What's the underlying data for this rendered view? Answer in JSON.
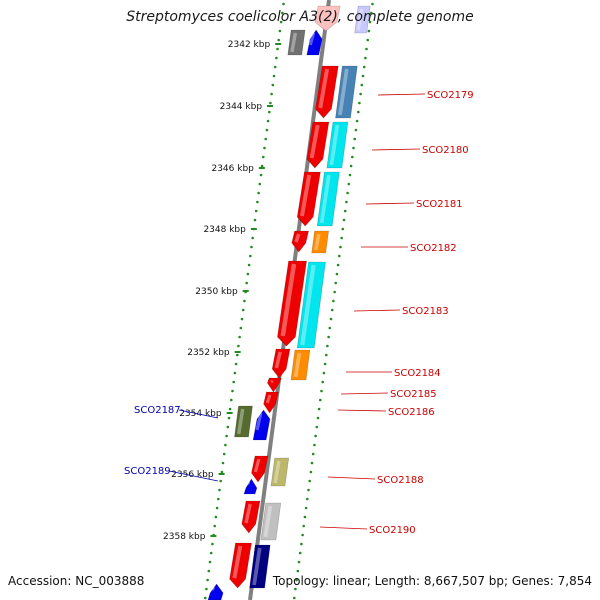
{
  "title": "Streptomyces coelicolor A3(2), complete genome",
  "footer": {
    "accession": "Accession: NC_003888",
    "stats": "Topology: linear; Length: 8,667,507 bp; Genes: 7,854"
  },
  "colors": {
    "backbone": "#888888",
    "guide_dots": "#228b22",
    "label_right": "#cc0000",
    "label_left": "#0000b0",
    "tick_text": "#111111"
  },
  "scale_ticks": [
    {
      "label": "2342 kbp",
      "kbp": 2342
    },
    {
      "label": "2344 kbp",
      "kbp": 2344
    },
    {
      "label": "2346 kbp",
      "kbp": 2346
    },
    {
      "label": "2348 kbp",
      "kbp": 2348
    },
    {
      "label": "2350 kbp",
      "kbp": 2350
    },
    {
      "label": "2352 kbp",
      "kbp": 2352
    },
    {
      "label": "2354 kbp",
      "kbp": 2354
    },
    {
      "label": "2356 kbp",
      "kbp": 2356
    },
    {
      "label": "2358 kbp",
      "kbp": 2358
    }
  ],
  "gene_labels_right": [
    {
      "name": "SCO2179",
      "color": "#cc0000"
    },
    {
      "name": "SCO2180",
      "color": "#cc0000"
    },
    {
      "name": "SCO2181",
      "color": "#cc0000"
    },
    {
      "name": "SCO2182",
      "color": "#cc0000"
    },
    {
      "name": "SCO2183",
      "color": "#cc0000"
    },
    {
      "name": "SCO2184",
      "color": "#cc0000"
    },
    {
      "name": "SCO2185",
      "color": "#cc0000"
    },
    {
      "name": "SCO2186",
      "color": "#cc0000"
    },
    {
      "name": "SCO2188",
      "color": "#cc0000"
    },
    {
      "name": "SCO2190",
      "color": "#cc0000"
    }
  ],
  "gene_labels_left": [
    {
      "name": "SCO2187",
      "color": "#0000b0"
    },
    {
      "name": "SCO2189",
      "color": "#0000b0"
    }
  ]
}
